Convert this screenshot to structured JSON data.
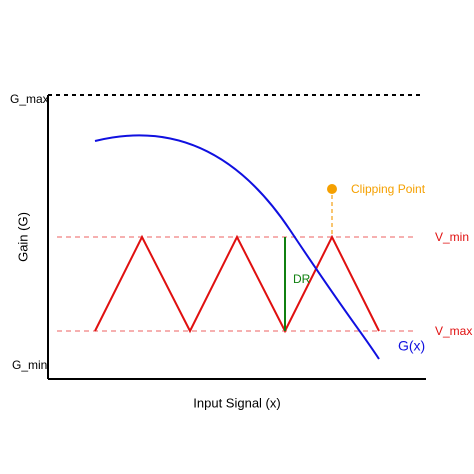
{
  "labels": {
    "g_max": "G_max",
    "g_min": "G_min",
    "y_axis": "Gain (G)",
    "x_axis": "Input Signal (x)",
    "clipping_point": "Clipping Point",
    "v_min": "V_min",
    "v_max": "V_max",
    "dr": "DR",
    "curve": "G(x)"
  }
}
